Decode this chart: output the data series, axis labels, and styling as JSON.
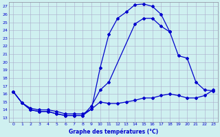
{
  "xlabel": "Graphe des températures (°C)",
  "background_color": "#cff0f0",
  "line_color": "#0000cc",
  "grid_color": "#aaaacc",
  "xlim": [
    -0.5,
    23.5
  ],
  "ylim": [
    12.5,
    27.5
  ],
  "yticks": [
    13,
    14,
    15,
    16,
    17,
    18,
    19,
    20,
    21,
    22,
    23,
    24,
    25,
    26,
    27
  ],
  "xticks": [
    0,
    1,
    2,
    3,
    4,
    5,
    6,
    7,
    8,
    9,
    10,
    11,
    12,
    13,
    14,
    15,
    16,
    17,
    18,
    19,
    20,
    21,
    22,
    23
  ],
  "line1_y": [
    16.3,
    14.9,
    14.0,
    13.8,
    13.8,
    13.5,
    13.3,
    13.3,
    13.3,
    14.1,
    19.3,
    23.5,
    25.5,
    26.3,
    27.2,
    27.3,
    27.0,
    26.0,
    23.8,
    null,
    null,
    null,
    null,
    null
  ],
  "line2_y": [
    16.3,
    14.9,
    14.0,
    13.8,
    13.8,
    13.5,
    13.3,
    13.3,
    13.3,
    14.5,
    16.5,
    17.5,
    null,
    null,
    null,
    null,
    null,
    null,
    23.8,
    20.8,
    20.5,
    17.5,
    16.5,
    16.4
  ],
  "line3_y": [
    null,
    null,
    null,
    null,
    null,
    null,
    null,
    null,
    null,
    null,
    null,
    null,
    null,
    null,
    24.8,
    25.5,
    25.5,
    24.5,
    null,
    null,
    null,
    null,
    null,
    null
  ],
  "line_a_x": [
    0,
    1,
    2,
    3,
    4,
    5,
    6,
    7,
    8,
    9,
    10,
    11,
    12,
    13,
    14,
    15,
    16,
    17,
    18
  ],
  "line_a_y": [
    16.3,
    14.9,
    14.0,
    13.8,
    13.8,
    13.5,
    13.3,
    13.3,
    13.3,
    14.1,
    19.3,
    23.5,
    25.5,
    26.3,
    27.2,
    27.3,
    27.0,
    26.0,
    23.8
  ],
  "line_b_x": [
    0,
    1,
    2,
    3,
    4,
    5,
    6,
    7,
    8,
    9,
    10,
    11,
    14,
    15,
    16,
    17,
    18,
    19,
    20,
    21,
    22,
    23
  ],
  "line_b_y": [
    16.3,
    14.9,
    14.0,
    13.8,
    13.8,
    13.5,
    13.3,
    13.3,
    13.3,
    14.5,
    16.5,
    17.5,
    24.8,
    25.5,
    25.5,
    24.5,
    23.8,
    20.8,
    20.5,
    17.5,
    16.5,
    16.4
  ],
  "line_c_x": [
    0,
    1,
    2,
    3,
    4,
    5,
    6,
    7,
    8,
    9,
    10,
    11,
    12,
    13,
    14,
    15,
    16,
    17,
    18,
    19,
    20,
    21,
    22,
    23
  ],
  "line_c_y": [
    16.3,
    14.9,
    14.2,
    14.0,
    14.0,
    13.8,
    13.5,
    13.5,
    13.5,
    14.1,
    15.0,
    14.8,
    14.8,
    15.0,
    15.2,
    15.5,
    15.5,
    15.8,
    16.0,
    15.8,
    15.5,
    15.5,
    15.8,
    16.5
  ]
}
